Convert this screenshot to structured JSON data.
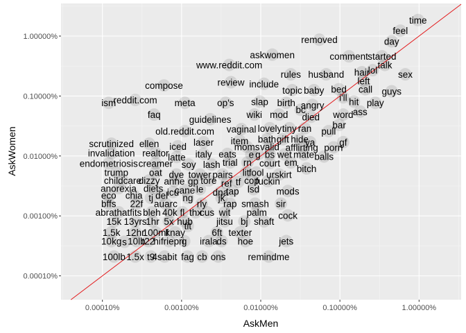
{
  "chart_data": {
    "type": "scatter",
    "xlabel": "AskMen",
    "ylabel": "AskWomen",
    "scale": "log10",
    "xlim": [
      3e-07,
      0.034
    ],
    "ylim": [
      4e-07,
      0.035
    ],
    "x_ticks": [
      {
        "value": 1e-06,
        "label": "0.00010%"
      },
      {
        "value": 1e-05,
        "label": "0.00100%"
      },
      {
        "value": 0.0001,
        "label": "0.01000%"
      },
      {
        "value": 0.001,
        "label": "0.10000%"
      },
      {
        "value": 0.01,
        "label": "1.00000%"
      }
    ],
    "y_ticks": [
      {
        "value": 1e-06,
        "label": "0.00010%"
      },
      {
        "value": 1e-05,
        "label": "0.00100%"
      },
      {
        "value": 0.0001,
        "label": "0.01000%"
      },
      {
        "value": 0.001,
        "label": "0.10000%"
      },
      {
        "value": 0.01,
        "label": "1.00000%"
      }
    ],
    "grid": true,
    "background": "#ebebeb",
    "reference_line": {
      "type": "y=x",
      "color": "#e31a1c"
    },
    "point_color": "#000000",
    "point_alpha": 0.04,
    "words": [
      {
        "word": "time",
        "x": 0.0097,
        "y": 0.0185
      },
      {
        "word": "feel",
        "x": 0.0058,
        "y": 0.0123
      },
      {
        "word": "day",
        "x": 0.0045,
        "y": 0.0082
      },
      {
        "word": "removed",
        "x": 0.00055,
        "y": 0.0087
      },
      {
        "word": "comment",
        "x": 0.0013,
        "y": 0.0046
      },
      {
        "word": "started",
        "x": 0.0034,
        "y": 0.0046
      },
      {
        "word": "askwomen",
        "x": 0.00014,
        "y": 0.0049
      },
      {
        "word": "hair",
        "x": 0.0019,
        "y": 0.0025
      },
      {
        "word": "lol",
        "x": 0.0026,
        "y": 0.0027
      },
      {
        "word": "talk",
        "x": 0.0037,
        "y": 0.0033
      },
      {
        "word": "www.reddit.com",
        "x": 4e-05,
        "y": 0.0033
      },
      {
        "word": "rules",
        "x": 0.00024,
        "y": 0.0023
      },
      {
        "word": "husband",
        "x": 0.00067,
        "y": 0.0023
      },
      {
        "word": "sex",
        "x": 0.0067,
        "y": 0.0023
      },
      {
        "word": "left",
        "x": 0.002,
        "y": 0.0018
      },
      {
        "word": "review",
        "x": 4.2e-05,
        "y": 0.0017
      },
      {
        "word": "include",
        "x": 0.00011,
        "y": 0.0016
      },
      {
        "word": "compose",
        "x": 6e-06,
        "y": 0.0015
      },
      {
        "word": "guys",
        "x": 0.0045,
        "y": 0.0012
      },
      {
        "word": "topic",
        "x": 0.00025,
        "y": 0.00125
      },
      {
        "word": "baby",
        "x": 0.00047,
        "y": 0.00125
      },
      {
        "word": "bed",
        "x": 0.00097,
        "y": 0.0013
      },
      {
        "word": "call",
        "x": 0.0021,
        "y": 0.0013
      },
      {
        "word": "i'll",
        "x": 0.0011,
        "y": 0.00095
      },
      {
        "word": "ism",
        "x": 1.2e-06,
        "y": 0.00077
      },
      {
        "word": "reddit.com",
        "x": 2.6e-06,
        "y": 0.00086
      },
      {
        "word": "meta",
        "x": 1.1e-05,
        "y": 0.00077
      },
      {
        "word": "op's",
        "x": 3.6e-05,
        "y": 0.00077
      },
      {
        "word": "slap",
        "x": 9.7e-05,
        "y": 0.00081
      },
      {
        "word": "birth",
        "x": 0.00021,
        "y": 0.00077
      },
      {
        "word": "hit",
        "x": 0.0015,
        "y": 0.00081
      },
      {
        "word": "play",
        "x": 0.0028,
        "y": 0.00077
      },
      {
        "word": "angry",
        "x": 0.00045,
        "y": 0.00071
      },
      {
        "word": "bc",
        "x": 0.00032,
        "y": 0.00059
      },
      {
        "word": "faq",
        "x": 4.5e-06,
        "y": 0.00049
      },
      {
        "word": "wiki",
        "x": 8.3e-05,
        "y": 0.00049
      },
      {
        "word": "mod",
        "x": 0.00017,
        "y": 0.00049
      },
      {
        "word": "died",
        "x": 0.00043,
        "y": 0.00045
      },
      {
        "word": "word",
        "x": 0.0011,
        "y": 0.00049
      },
      {
        "word": "ass",
        "x": 0.0018,
        "y": 0.00055
      },
      {
        "word": "guidelines",
        "x": 2.3e-05,
        "y": 0.00041
      },
      {
        "word": "bar",
        "x": 0.00098,
        "y": 0.00033
      },
      {
        "word": "vaginal",
        "x": 5.7e-05,
        "y": 0.00028
      },
      {
        "word": "lovely",
        "x": 0.00013,
        "y": 0.00029
      },
      {
        "word": "tiny",
        "x": 0.00023,
        "y": 0.00029
      },
      {
        "word": "ran",
        "x": 0.00036,
        "y": 0.00029
      },
      {
        "word": "pull",
        "x": 0.00072,
        "y": 0.00026
      },
      {
        "word": "old.reddit.com",
        "x": 1.1e-05,
        "y": 0.00026
      },
      {
        "word": "bath",
        "x": 0.00012,
        "y": 0.00019
      },
      {
        "word": "gift",
        "x": 0.00019,
        "y": 0.00019
      },
      {
        "word": "hide",
        "x": 0.00031,
        "y": 0.00019
      },
      {
        "word": "ya",
        "x": 0.00042,
        "y": 0.00017
      },
      {
        "word": "gf",
        "x": 0.0011,
        "y": 0.00017
      },
      {
        "word": "scrutinized",
        "x": 1.3e-06,
        "y": 0.00016
      },
      {
        "word": "ellen",
        "x": 3.9e-06,
        "y": 0.00016
      },
      {
        "word": "laser",
        "x": 1.9e-05,
        "y": 0.00017
      },
      {
        "word": "item",
        "x": 5.4e-05,
        "y": 0.00018
      },
      {
        "word": "iced",
        "x": 9e-06,
        "y": 0.000145
      },
      {
        "word": "moms",
        "x": 6.7e-05,
        "y": 0.000142
      },
      {
        "word": "valid",
        "x": 0.00013,
        "y": 0.000142
      },
      {
        "word": "afflirting",
        "x": 0.00033,
        "y": 0.000139
      },
      {
        "word": "porn",
        "x": 0.00083,
        "y": 0.000139
      },
      {
        "word": "invalidation",
        "x": 1.3e-06,
        "y": 0.000112
      },
      {
        "word": "realtor",
        "x": 4.7e-06,
        "y": 0.000112
      },
      {
        "word": "italy",
        "x": 1.9e-05,
        "y": 0.000108
      },
      {
        "word": "eats",
        "x": 3.8e-05,
        "y": 0.000108
      },
      {
        "word": "e",
        "x": 7.6e-05,
        "y": 0.000106
      },
      {
        "word": "g",
        "x": 9.2e-05,
        "y": 0.000106
      },
      {
        "word": "bs",
        "x": 0.00013,
        "y": 0.000106
      },
      {
        "word": "wet",
        "x": 0.0002,
        "y": 0.000106
      },
      {
        "word": "mate",
        "x": 0.00035,
        "y": 0.000106
      },
      {
        "word": "balls",
        "x": 0.00063,
        "y": 9.8e-05
      },
      {
        "word": "latte",
        "x": 8.7e-06,
        "y": 9.6e-05
      },
      {
        "word": "endometriosis",
        "x": 1.2e-06,
        "y": 7.5e-05
      },
      {
        "word": "creamer",
        "x": 4.7e-06,
        "y": 7.5e-05
      },
      {
        "word": "soy",
        "x": 1.23e-05,
        "y": 7.2e-05
      },
      {
        "word": "lash",
        "x": 2.4e-05,
        "y": 7.2e-05
      },
      {
        "word": "trial",
        "x": 4.1e-05,
        "y": 7.8e-05
      },
      {
        "word": "rn",
        "x": 6.8e-05,
        "y": 7.8e-05
      },
      {
        "word": "court",
        "x": 0.00013,
        "y": 7.6e-05
      },
      {
        "word": "em",
        "x": 0.00024,
        "y": 7.8e-05
      },
      {
        "word": "bitch",
        "x": 0.00038,
        "y": 6.2e-05
      },
      {
        "word": "trump",
        "x": 1.5e-06,
        "y": 5.3e-05
      },
      {
        "word": "oat",
        "x": 4.7e-06,
        "y": 5.3e-05
      },
      {
        "word": "dye",
        "x": 8.6e-06,
        "y": 4.9e-05
      },
      {
        "word": "tower",
        "x": 1.7e-05,
        "y": 4.9e-05
      },
      {
        "word": "pairs",
        "x": 3.3e-05,
        "y": 4.9e-05
      },
      {
        "word": "lit",
        "x": 6.5e-05,
        "y": 5.3e-05
      },
      {
        "word": "fool",
        "x": 8.8e-05,
        "y": 5.3e-05
      },
      {
        "word": "urskirt",
        "x": 0.00017,
        "y": 4.9e-05
      },
      {
        "word": "childcare",
        "x": 1.8e-06,
        "y": 3.9e-05
      },
      {
        "word": "dizzy",
        "x": 3.9e-06,
        "y": 3.9e-05
      },
      {
        "word": "anne",
        "x": 8.1e-06,
        "y": 3.8e-05
      },
      {
        "word": "gp",
        "x": 1.4e-05,
        "y": 3.8e-05
      },
      {
        "word": "tore",
        "x": 2.2e-05,
        "y": 3.9e-05
      },
      {
        "word": "ref",
        "x": 3.7e-05,
        "y": 3.5e-05
      },
      {
        "word": "tf",
        "x": 5.2e-05,
        "y": 3.7e-05
      },
      {
        "word": "cop",
        "x": 7.7e-05,
        "y": 3.9e-05
      },
      {
        "word": "fuckin",
        "x": 0.000123,
        "y": 3.8e-05
      },
      {
        "word": "anorexia",
        "x": 1.6e-06,
        "y": 2.9e-05
      },
      {
        "word": "diets",
        "x": 4.4e-06,
        "y": 2.9e-05
      },
      {
        "word": "cane",
        "x": 1.1e-05,
        "y": 2.7e-05
      },
      {
        "word": "le",
        "x": 1.7e-05,
        "y": 2.8e-05
      },
      {
        "word": "dna",
        "x": 3.1e-05,
        "y": 2.5e-05
      },
      {
        "word": "tap",
        "x": 4.4e-05,
        "y": 2.6e-05
      },
      {
        "word": "lsd",
        "x": 8.1e-05,
        "y": 2.8e-05
      },
      {
        "word": "mods",
        "x": 0.00022,
        "y": 2.6e-05
      },
      {
        "word": "eco",
        "x": 1.2e-06,
        "y": 2.2e-05
      },
      {
        "word": "chia",
        "x": 2.5e-06,
        "y": 2.2e-05
      },
      {
        "word": "del",
        "x": 5.6e-06,
        "y": 2.2e-05
      },
      {
        "word": "icu",
        "x": 7.8e-06,
        "y": 2.5e-05
      },
      {
        "word": "tj",
        "x": 4.1e-06,
        "y": 2e-05
      },
      {
        "word": "ng",
        "x": 1.2e-05,
        "y": 2e-05
      },
      {
        "word": "jk",
        "x": 3.2e-05,
        "y": 2e-05
      },
      {
        "word": "bffs",
        "x": 1.2e-06,
        "y": 1.6e-05
      },
      {
        "word": "22f",
        "x": 2.7e-06,
        "y": 1.6e-05
      },
      {
        "word": "auarc",
        "x": 6.3e-06,
        "y": 1.6e-05
      },
      {
        "word": "rly",
        "x": 1.8e-05,
        "y": 1.6e-05
      },
      {
        "word": "rap",
        "x": 4.1e-05,
        "y": 1.6e-05
      },
      {
        "word": "smash",
        "x": 8.5e-05,
        "y": 1.6e-05
      },
      {
        "word": "sir",
        "x": 0.00018,
        "y": 1.6e-05
      },
      {
        "word": "abrathatfits",
        "x": 1.6e-06,
        "y": 1.15e-05
      },
      {
        "word": "bleh",
        "x": 4.2e-06,
        "y": 1.15e-05
      },
      {
        "word": "40k",
        "x": 7.1e-06,
        "y": 1.15e-05
      },
      {
        "word": "fl",
        "x": 1.02e-05,
        "y": 1.15e-05
      },
      {
        "word": "thx",
        "x": 1.5e-05,
        "y": 1.15e-05
      },
      {
        "word": "cus",
        "x": 2.1e-05,
        "y": 1.15e-05
      },
      {
        "word": "wit",
        "x": 3.5e-05,
        "y": 1.15e-05
      },
      {
        "word": "palm",
        "x": 8.9e-05,
        "y": 1.15e-05
      },
      {
        "word": "cock",
        "x": 0.00022,
        "y": 1.02e-05
      },
      {
        "word": "15k",
        "x": 1.4e-06,
        "y": 8.1e-06
      },
      {
        "word": "13yrs",
        "x": 2.6e-06,
        "y": 8.1e-06
      },
      {
        "word": "1hr",
        "x": 4.3e-06,
        "y": 8.1e-06
      },
      {
        "word": "5x",
        "x": 6.9e-06,
        "y": 8.1e-06
      },
      {
        "word": "hub",
        "x": 1.1e-05,
        "y": 8.1e-06
      },
      {
        "word": "jitsu",
        "x": 3.5e-05,
        "y": 8.1e-06
      },
      {
        "word": "bj",
        "x": 6.2e-05,
        "y": 8.1e-06
      },
      {
        "word": "shaft",
        "x": 0.00011,
        "y": 8.1e-06
      },
      {
        "word": "tit",
        "x": 1.2e-05,
        "y": 6.8e-06
      },
      {
        "word": "1.5k",
        "x": 1.3e-06,
        "y": 5.3e-06
      },
      {
        "word": "12hr",
        "x": 2.6e-06,
        "y": 5.3e-06
      },
      {
        "word": "100mf",
        "x": 4.7e-06,
        "y": 5.3e-06
      },
      {
        "word": "knay",
        "x": 8.3e-06,
        "y": 5.3e-06
      },
      {
        "word": "6ft",
        "x": 2.8e-05,
        "y": 5.3e-06
      },
      {
        "word": "texter",
        "x": 5.5e-05,
        "y": 5.3e-06
      },
      {
        "word": "10kg",
        "x": 1.3e-06,
        "y": 3.8e-06
      },
      {
        "word": "s",
        "x": 1.9e-06,
        "y": 3.7e-06
      },
      {
        "word": "10lb",
        "x": 2.7e-06,
        "y": 3.8e-06
      },
      {
        "word": "t22",
        "x": 3.8e-06,
        "y": 3.8e-06
      },
      {
        "word": "hifriepri",
        "x": 6.9e-06,
        "y": 3.8e-06
      },
      {
        "word": "g",
        "x": 1.08e-05,
        "y": 3.8e-06
      },
      {
        "word": "irala",
        "x": 2.2e-05,
        "y": 3.8e-06
      },
      {
        "word": "ds",
        "x": 3.2e-05,
        "y": 3.8e-06
      },
      {
        "word": "hoe",
        "x": 6.4e-05,
        "y": 3.8e-06
      },
      {
        "word": "jets",
        "x": 0.00021,
        "y": 3.8e-06
      },
      {
        "word": "100lb",
        "x": 1.4e-06,
        "y": 2.1e-06
      },
      {
        "word": "1.5x",
        "x": 2.6e-06,
        "y": 2.1e-06
      },
      {
        "word": "t9",
        "x": 4.1e-06,
        "y": 2.1e-06
      },
      {
        "word": "4sabit",
        "x": 6.1e-06,
        "y": 2.1e-06
      },
      {
        "word": "fag",
        "x": 1.19e-05,
        "y": 2.1e-06
      },
      {
        "word": "cb",
        "x": 1.82e-05,
        "y": 2.1e-06
      },
      {
        "word": "ons",
        "x": 2.9e-05,
        "y": 2.1e-06
      },
      {
        "word": "remindme",
        "x": 0.000126,
        "y": 2.1e-06
      }
    ]
  }
}
